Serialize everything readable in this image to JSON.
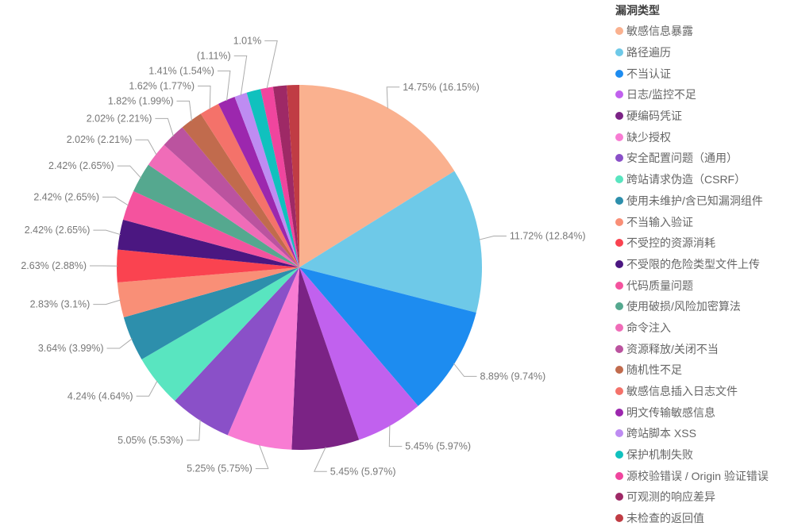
{
  "legend": {
    "title": "漏洞类型",
    "position": "right"
  },
  "chart_data": {
    "type": "pie",
    "title": "漏洞类型",
    "legend_position": "right",
    "label_format": "pct_of_total% (pct_of_pie%)",
    "label_color": "#777777",
    "leader_color": "#ababab",
    "slices": [
      {
        "name": "敏感信息暴露",
        "color": "#fab18f",
        "pct_of_total": 14.75,
        "pct_of_pie": 16.15,
        "label": "14.75% (16.15%)"
      },
      {
        "name": "路径遍历",
        "color": "#6ec9e8",
        "pct_of_total": 11.72,
        "pct_of_pie": 12.84,
        "label": "11.72% (12.84%)"
      },
      {
        "name": "不当认证",
        "color": "#1d8cf0",
        "pct_of_total": 8.89,
        "pct_of_pie": 9.74,
        "label": "8.89% (9.74%)"
      },
      {
        "name": "日志/监控不足",
        "color": "#c161ee",
        "pct_of_total": 5.45,
        "pct_of_pie": 5.97,
        "label": "5.45% (5.97%)"
      },
      {
        "name": "硬编码凭证",
        "color": "#7b2385",
        "pct_of_total": 5.45,
        "pct_of_pie": 5.97,
        "label": "5.45% (5.97%)"
      },
      {
        "name": "缺少授权",
        "color": "#f87cd3",
        "pct_of_total": 5.25,
        "pct_of_pie": 5.75,
        "label": "5.25% (5.75%)"
      },
      {
        "name": "安全配置问题（通用）",
        "color": "#8a50c8",
        "pct_of_total": 5.05,
        "pct_of_pie": 5.53,
        "label": "5.05% (5.53%)"
      },
      {
        "name": "跨站请求伪造（CSRF）",
        "color": "#59e5c0",
        "pct_of_total": 4.24,
        "pct_of_pie": 4.64,
        "label": "4.24% (4.64%)"
      },
      {
        "name": "使用未维护/含已知漏洞组件",
        "color": "#2d8fac",
        "pct_of_total": 3.64,
        "pct_of_pie": 3.99,
        "label": "3.64% (3.99%)"
      },
      {
        "name": "不当输入验证",
        "color": "#f98f77",
        "pct_of_total": 2.83,
        "pct_of_pie": 3.1,
        "label": "2.83% (3.1%)"
      },
      {
        "name": "不受控的资源消耗",
        "color": "#fa4350",
        "pct_of_total": 2.63,
        "pct_of_pie": 2.88,
        "label": "2.63% (2.88%)"
      },
      {
        "name": "不受限的危险类型文件上传",
        "color": "#4b1781",
        "pct_of_total": 2.42,
        "pct_of_pie": 2.65,
        "label": "2.42% (2.65%)"
      },
      {
        "name": "代码质量问题",
        "color": "#f4539e",
        "pct_of_total": 2.42,
        "pct_of_pie": 2.65,
        "label": "2.42% (2.65%)"
      },
      {
        "name": "使用破损/风险加密算法",
        "color": "#55a88f",
        "pct_of_total": 2.42,
        "pct_of_pie": 2.65,
        "label": "2.42% (2.65%)"
      },
      {
        "name": "命令注入",
        "color": "#f06cb8",
        "pct_of_total": 2.02,
        "pct_of_pie": 2.21,
        "label": "2.02% (2.21%)"
      },
      {
        "name": "资源释放/关闭不当",
        "color": "#bb539f",
        "pct_of_total": 2.02,
        "pct_of_pie": 2.21,
        "label": "2.02% (2.21%)"
      },
      {
        "name": "随机性不足",
        "color": "#c16b4d",
        "pct_of_total": 1.82,
        "pct_of_pie": 1.99,
        "label": "1.82% (1.99%)"
      },
      {
        "name": "敏感信息插入日志文件",
        "color": "#f4726a",
        "pct_of_total": 1.62,
        "pct_of_pie": 1.77,
        "label": "1.62% (1.77%)"
      },
      {
        "name": "明文传输敏感信息",
        "color": "#9c27ae",
        "pct_of_total": 1.41,
        "pct_of_pie": 1.54,
        "label": "1.41% (1.54%)"
      },
      {
        "name": "跨站脚本 XSS",
        "color": "#be8cf2",
        "pct_of_total": null,
        "pct_of_pie": 1.11,
        "label": "(1.11%)"
      },
      {
        "name": "保护机制失败",
        "color": "#10c1be",
        "pct_of_total": null,
        "pct_of_pie": 1.25,
        "label": null
      },
      {
        "name": "源校验错误 / Origin 验证错误",
        "color": "#f0459e",
        "pct_of_total": 1.01,
        "pct_of_pie": 1.11,
        "label": "1.01%"
      },
      {
        "name": "可观测的响应差异",
        "color": "#9e2966",
        "pct_of_total": null,
        "pct_of_pie": 1.2,
        "label": null
      },
      {
        "name": "未检查的返回值",
        "color": "#c03c44",
        "pct_of_total": null,
        "pct_of_pie": 1.1,
        "label": null
      }
    ]
  }
}
